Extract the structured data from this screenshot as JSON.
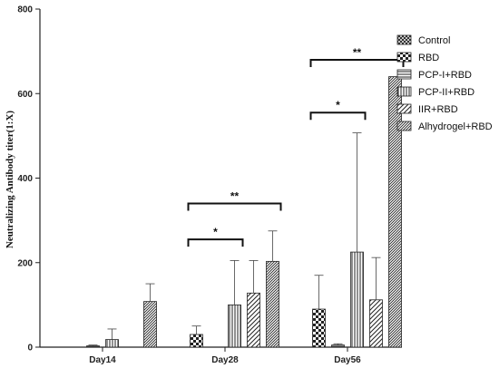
{
  "chart_data": {
    "type": "bar",
    "title": "",
    "xlabel": "",
    "ylabel": "Neutralizing Antibody titer(1:X)",
    "ylim": [
      0,
      800
    ],
    "yticks": [
      0,
      200,
      400,
      600,
      800
    ],
    "grid": false,
    "legend_position": "top-right",
    "categories": [
      "Day14",
      "Day28",
      "Day56"
    ],
    "series": [
      {
        "name": "Control",
        "pattern": "crosshatch",
        "values": [
          0,
          0,
          0
        ],
        "errors": [
          0,
          0,
          0
        ]
      },
      {
        "name": "RBD",
        "pattern": "checker",
        "values": [
          0,
          30,
          90
        ],
        "errors": [
          0,
          20,
          80
        ]
      },
      {
        "name": "PCP-I+RBD",
        "pattern": "horizontal",
        "values": [
          3,
          0,
          5
        ],
        "errors": [
          2,
          0,
          3
        ]
      },
      {
        "name": "PCP-II+RBD",
        "pattern": "vertical",
        "values": [
          18,
          100,
          225
        ],
        "errors": [
          25,
          105,
          282
        ]
      },
      {
        "name": "IIR+RBD",
        "pattern": "diagonal",
        "values": [
          0,
          128,
          112
        ],
        "errors": [
          0,
          77,
          100
        ]
      },
      {
        "name": "Alhydrogel+RBD",
        "pattern": "diagonal-dense",
        "values": [
          108,
          203,
          640
        ],
        "errors": [
          42,
          72,
          0
        ]
      }
    ],
    "annotations": [
      {
        "label": "*",
        "category": "Day28",
        "from_series": 1,
        "to_series": 3,
        "y": 255
      },
      {
        "label": "**",
        "category": "Day28",
        "from_series": 1,
        "to_series": 5,
        "y": 340
      },
      {
        "label": "*",
        "category": "Day56",
        "from_series": 1,
        "to_series": 3,
        "y": 555
      },
      {
        "label": "**",
        "category": "Day56",
        "from_series": 1,
        "to_series": 5,
        "y": 680
      }
    ]
  }
}
